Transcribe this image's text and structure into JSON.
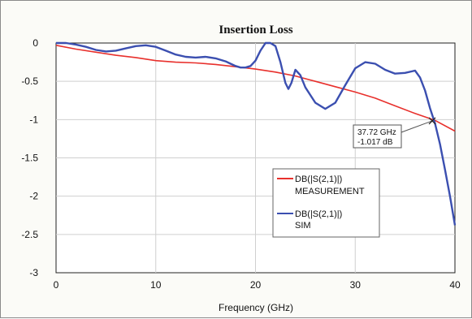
{
  "chart_data": {
    "type": "line",
    "title": "Insertion Loss",
    "xlabel": "Frequency (GHz)",
    "ylabel": "",
    "xlim": [
      0,
      40
    ],
    "ylim": [
      -3,
      0
    ],
    "xticks": [
      0,
      10,
      20,
      30,
      40
    ],
    "yticks": [
      0,
      -0.5,
      -1,
      -1.5,
      -2,
      -2.5,
      -3
    ],
    "xtick_labels": [
      "0",
      "10",
      "20",
      "30",
      "40"
    ],
    "ytick_labels": [
      "0",
      "-0.5",
      "-1",
      "-1.5",
      "-2",
      "-2.5",
      "-3"
    ],
    "grid": true,
    "legend_position": "lower-right",
    "series": [
      {
        "name": "DB(|S(2,1)|)",
        "name_line2": "MEASUREMENT",
        "color": "#e8302c",
        "x": [
          0,
          2,
          4,
          6,
          8,
          10,
          12,
          14,
          16,
          18,
          20,
          22,
          24,
          26,
          28,
          30,
          32,
          34,
          36,
          38,
          40
        ],
        "y": [
          -0.03,
          -0.08,
          -0.12,
          -0.16,
          -0.19,
          -0.23,
          -0.25,
          -0.26,
          -0.28,
          -0.31,
          -0.34,
          -0.38,
          -0.43,
          -0.5,
          -0.57,
          -0.64,
          -0.72,
          -0.82,
          -0.92,
          -1.01,
          -1.15
        ]
      },
      {
        "name": "DB(|S(2,1)|)",
        "name_line2": "SIM",
        "color": "#3b4fb0",
        "x": [
          0,
          1,
          2,
          3,
          4,
          5,
          6,
          7,
          8,
          9,
          10,
          11,
          12,
          13,
          14,
          15,
          16,
          17,
          17.5,
          18,
          18.5,
          19,
          19.5,
          20,
          20.5,
          21,
          21.5,
          22,
          22.5,
          23,
          23.3,
          23.6,
          24,
          24.5,
          25,
          26,
          27,
          28,
          29,
          30,
          31,
          32,
          33,
          34,
          35,
          36,
          36.5,
          37,
          37.5,
          38,
          38.5,
          39,
          39.5,
          40
        ],
        "y": [
          0,
          0,
          -0.02,
          -0.05,
          -0.09,
          -0.11,
          -0.1,
          -0.07,
          -0.04,
          -0.03,
          -0.05,
          -0.1,
          -0.15,
          -0.18,
          -0.19,
          -0.18,
          -0.2,
          -0.24,
          -0.27,
          -0.3,
          -0.32,
          -0.32,
          -0.3,
          -0.23,
          -0.1,
          0.03,
          0.06,
          -0.04,
          -0.25,
          -0.52,
          -0.6,
          -0.52,
          -0.35,
          -0.42,
          -0.58,
          -0.78,
          -0.86,
          -0.78,
          -0.55,
          -0.33,
          -0.25,
          -0.27,
          -0.35,
          -0.4,
          -0.39,
          -0.36,
          -0.45,
          -0.62,
          -0.85,
          -1.05,
          -1.32,
          -1.65,
          -2.0,
          -2.38
        ]
      }
    ],
    "marker": {
      "x": 37.72,
      "y": -1.017,
      "label_line1": "37.72 GHz",
      "label_line2": "-1.017 dB"
    }
  }
}
